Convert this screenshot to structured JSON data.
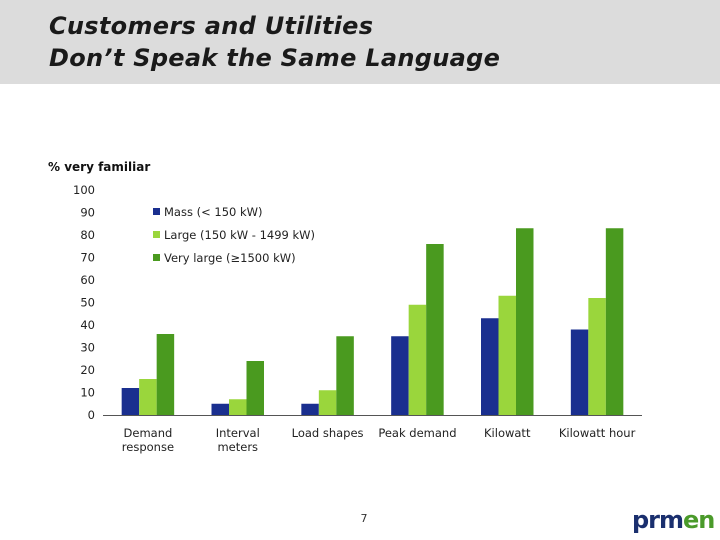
{
  "slide": {
    "title_line1": "Customers and Utilities",
    "title_line2": "Don’t Speak the Same Language",
    "page_number": "7",
    "logo_part1": "prm",
    "logo_part2": "en"
  },
  "colors": {
    "title_band": "#dcdcdc",
    "mass": "#1a2f8f",
    "large": "#9ad63c",
    "very_large": "#4a9a1f"
  },
  "chart_data": {
    "type": "bar",
    "ylabel": "% very familiar",
    "xlabel": "",
    "ylim": [
      0,
      100
    ],
    "yticks": [
      0,
      10,
      20,
      30,
      40,
      50,
      60,
      70,
      80,
      90,
      100
    ],
    "grid": false,
    "legend_position": "top-left",
    "categories": [
      [
        "Demand",
        "response"
      ],
      [
        "Interval",
        "meters"
      ],
      [
        "Load shapes"
      ],
      [
        "Peak demand"
      ],
      [
        "Kilowatt"
      ],
      [
        "Kilowatt hour"
      ]
    ],
    "series": [
      {
        "name": "Mass (< 150 kW)",
        "color": "#1a2f8f",
        "values": [
          12,
          5,
          5,
          35,
          43,
          38
        ]
      },
      {
        "name": "Large (150 kW - 1499 kW)",
        "color": "#9ad63c",
        "values": [
          16,
          7,
          11,
          49,
          53,
          52
        ]
      },
      {
        "name": "Very large (≥1500 kW)",
        "color": "#4a9a1f",
        "values": [
          36,
          24,
          35,
          76,
          83,
          83
        ]
      }
    ]
  }
}
